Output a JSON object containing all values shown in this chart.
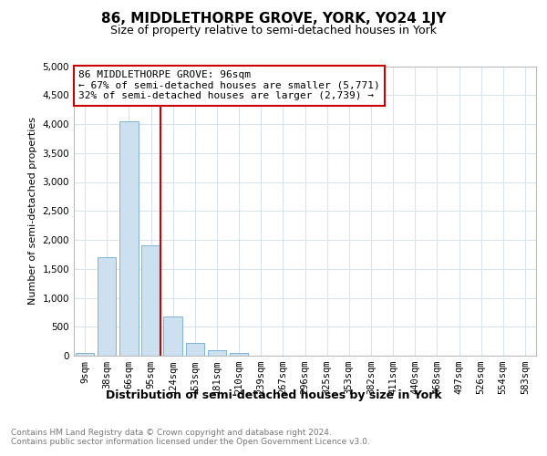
{
  "title": "86, MIDDLETHORPE GROVE, YORK, YO24 1JY",
  "subtitle": "Size of property relative to semi-detached houses in York",
  "xlabel": "Distribution of semi-detached houses by size in York",
  "ylabel": "Number of semi-detached properties",
  "footnote": "Contains HM Land Registry data © Crown copyright and database right 2024.\nContains public sector information licensed under the Open Government Licence v3.0.",
  "annotation_title": "86 MIDDLETHORPE GROVE: 96sqm",
  "annotation_line1": "← 67% of semi-detached houses are smaller (5,771)",
  "annotation_line2": "32% of semi-detached houses are larger (2,739) →",
  "bin_labels": [
    "9sqm",
    "38sqm",
    "66sqm",
    "95sqm",
    "124sqm",
    "153sqm",
    "181sqm",
    "210sqm",
    "239sqm",
    "267sqm",
    "296sqm",
    "325sqm",
    "353sqm",
    "382sqm",
    "411sqm",
    "440sqm",
    "468sqm",
    "497sqm",
    "526sqm",
    "554sqm",
    "583sqm"
  ],
  "values": [
    50,
    1700,
    4050,
    1900,
    680,
    220,
    90,
    55,
    0,
    0,
    0,
    0,
    0,
    0,
    0,
    0,
    0,
    0,
    0,
    0,
    0
  ],
  "property_line_index": 3,
  "bar_color": "#cce0f0",
  "bar_edge_color": "#7fb5d5",
  "property_line_color": "#cc0000",
  "annotation_box_color": "#cc0000",
  "ylim": [
    0,
    5000
  ],
  "ytick_max": 5000,
  "ytick_step": 500,
  "grid_color": "#d8e4f0",
  "title_fontsize": 11,
  "subtitle_fontsize": 9,
  "ylabel_fontsize": 8,
  "xlabel_fontsize": 9,
  "tick_fontsize": 7.5,
  "footnote_fontsize": 6.5,
  "annotation_fontsize": 8
}
